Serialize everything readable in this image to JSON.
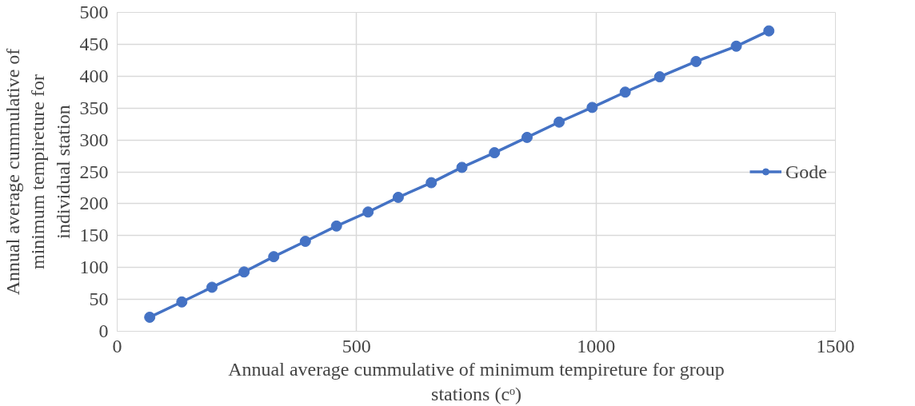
{
  "chart_data": {
    "type": "line",
    "xlabel": "Annual average cummulative of minimum tempireture for group stations (cᵒ)",
    "ylabel": "Annual average cummulative of minimum tempireture for individual station",
    "x": [
      68,
      135,
      198,
      265,
      327,
      393,
      458,
      524,
      587,
      656,
      720,
      788,
      856,
      923,
      992,
      1061,
      1133,
      1209,
      1293,
      1361
    ],
    "series": [
      {
        "name": "Gode",
        "color": "#4472c4",
        "values": [
          22,
          46,
          69,
          93,
          117,
          141,
          165,
          187,
          210,
          233,
          257,
          280,
          304,
          328,
          351,
          375,
          399,
          423,
          447,
          471
        ]
      }
    ],
    "xlim": [
      0,
      1500
    ],
    "xticks": [
      0,
      500,
      1000,
      1500
    ],
    "ylim": [
      0,
      500
    ],
    "yticks": [
      0,
      50,
      100,
      150,
      200,
      250,
      300,
      350,
      400,
      450,
      500
    ],
    "grid": true,
    "legend": "right",
    "marker": "circle",
    "line_style": "solid"
  }
}
